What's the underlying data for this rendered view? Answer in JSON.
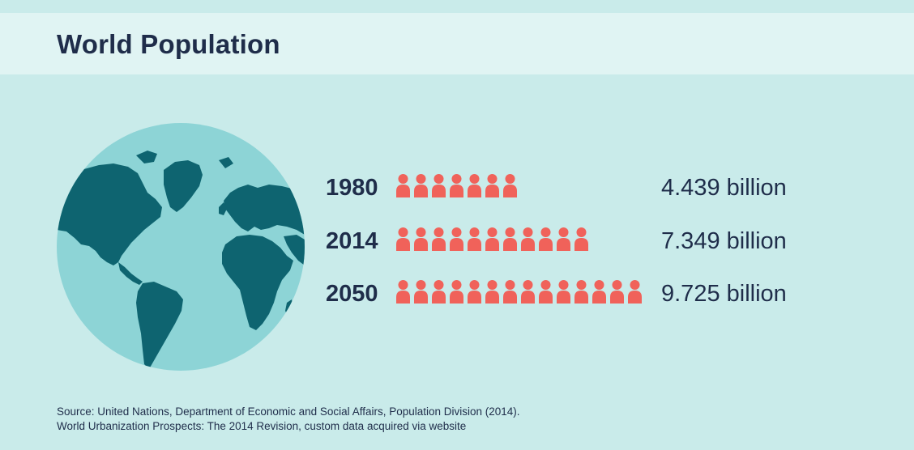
{
  "title": "World Population",
  "colors": {
    "background": "#c9ebea",
    "header": "#e0f4f3",
    "text": "#1f2d4a",
    "person_icon": "#f0625a",
    "ocean": "#8dd4d6",
    "land": "#0e6470"
  },
  "icons": {
    "globe": "globe-icon",
    "person": "person-icon"
  },
  "chart_data": {
    "type": "pictograph",
    "categories": [
      "1980",
      "2014",
      "2050"
    ],
    "values": [
      4.439,
      7.349,
      9.725
    ],
    "icon_counts": [
      7,
      11,
      14
    ],
    "value_labels": [
      "4.439 billion",
      "7.349 billion",
      "9.725 billion"
    ],
    "unit": "billion",
    "title": "World Population"
  },
  "source": {
    "line1": "Source: United Nations, Department of Economic and Social Affairs, Population Division (2014).",
    "line2": "World Urbanization Prospects: The 2014 Revision, custom data acquired via website"
  }
}
